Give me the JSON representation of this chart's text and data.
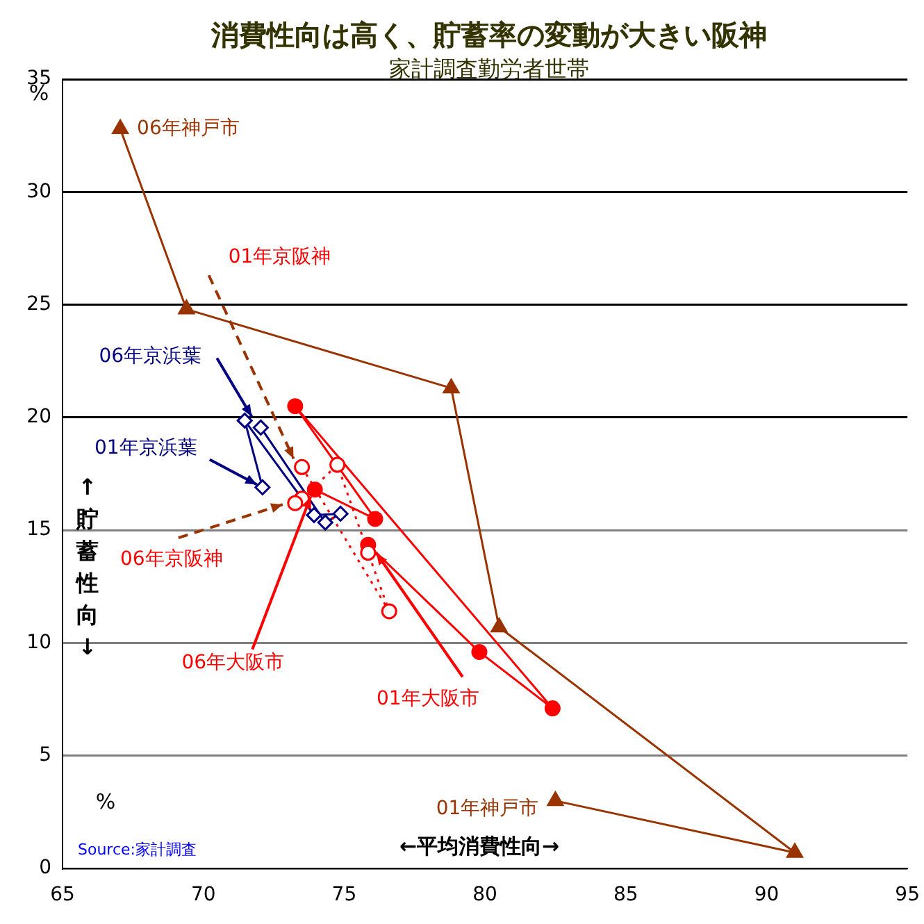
{
  "chart_data": {
    "type": "line",
    "title": "消費性向は高く、貯蓄率の変動が大きい阪神",
    "subtitle": "家計調査勤労者世帯",
    "xlabel": "←平均消費性向→",
    "ylabel": "↑貯蓄性向↓",
    "xlim": [
      65,
      95
    ],
    "xticks": [
      65,
      70,
      75,
      80,
      85,
      90,
      95
    ],
    "ylim": [
      0,
      35
    ],
    "yticks": [
      0,
      5,
      10,
      15,
      20,
      25,
      30,
      35
    ],
    "grid": "y",
    "legend": false,
    "series": [
      {
        "color": "#993300",
        "marker": "triangle",
        "line_style": "solid",
        "x": [
          82.5,
          91.0,
          80.5,
          78.8,
          69.4,
          67.05
        ],
        "values": [
          3.0,
          0.7,
          10.7,
          21.3,
          24.8,
          32.8
        ]
      },
      {
        "color": "#ff0000",
        "marker": "circle",
        "line_style": "dotted",
        "x": [
          73.5,
          76.6,
          75.85,
          74.76,
          73.5,
          73.26
        ],
        "values": [
          17.8,
          11.4,
          14.0,
          17.9,
          16.4,
          16.2
        ]
      },
      {
        "color": "#000080",
        "marker": "diamond",
        "line_style": "solid",
        "x": [
          72.1,
          71.47,
          73.93,
          74.87,
          74.33,
          72.04
        ],
        "values": [
          16.9,
          19.86,
          15.67,
          15.73,
          15.34,
          19.55
        ]
      },
      {
        "color": "#ff0000",
        "marker": "circle",
        "line_style": "solid",
        "x": [
          75.85,
          79.8,
          82.4,
          73.26,
          76.1,
          73.96
        ],
        "values": [
          14.35,
          9.6,
          7.1,
          20.5,
          15.5,
          16.8
        ]
      }
    ],
    "annotations": [
      {
        "text": "06年神戸市",
        "x": 67.05,
        "y": 32.8
      },
      {
        "text": "01年神戸市",
        "x": 82.5,
        "y": 3.0
      },
      {
        "text": "01年京阪神",
        "x": 73.5,
        "y": 17.8
      },
      {
        "text": "06年京阪神",
        "x": 73.26,
        "y": 16.2
      },
      {
        "text": "06年京浜葉",
        "x": 71.47,
        "y": 19.86
      },
      {
        "text": "01年京浜葉",
        "x": 72.1,
        "y": 16.9
      },
      {
        "text": "06年大阪市",
        "x": 73.96,
        "y": 16.8
      },
      {
        "text": "01年大阪市",
        "x": 75.85,
        "y": 14.35
      },
      "%",
      "%",
      "Source:家計調査"
    ]
  }
}
